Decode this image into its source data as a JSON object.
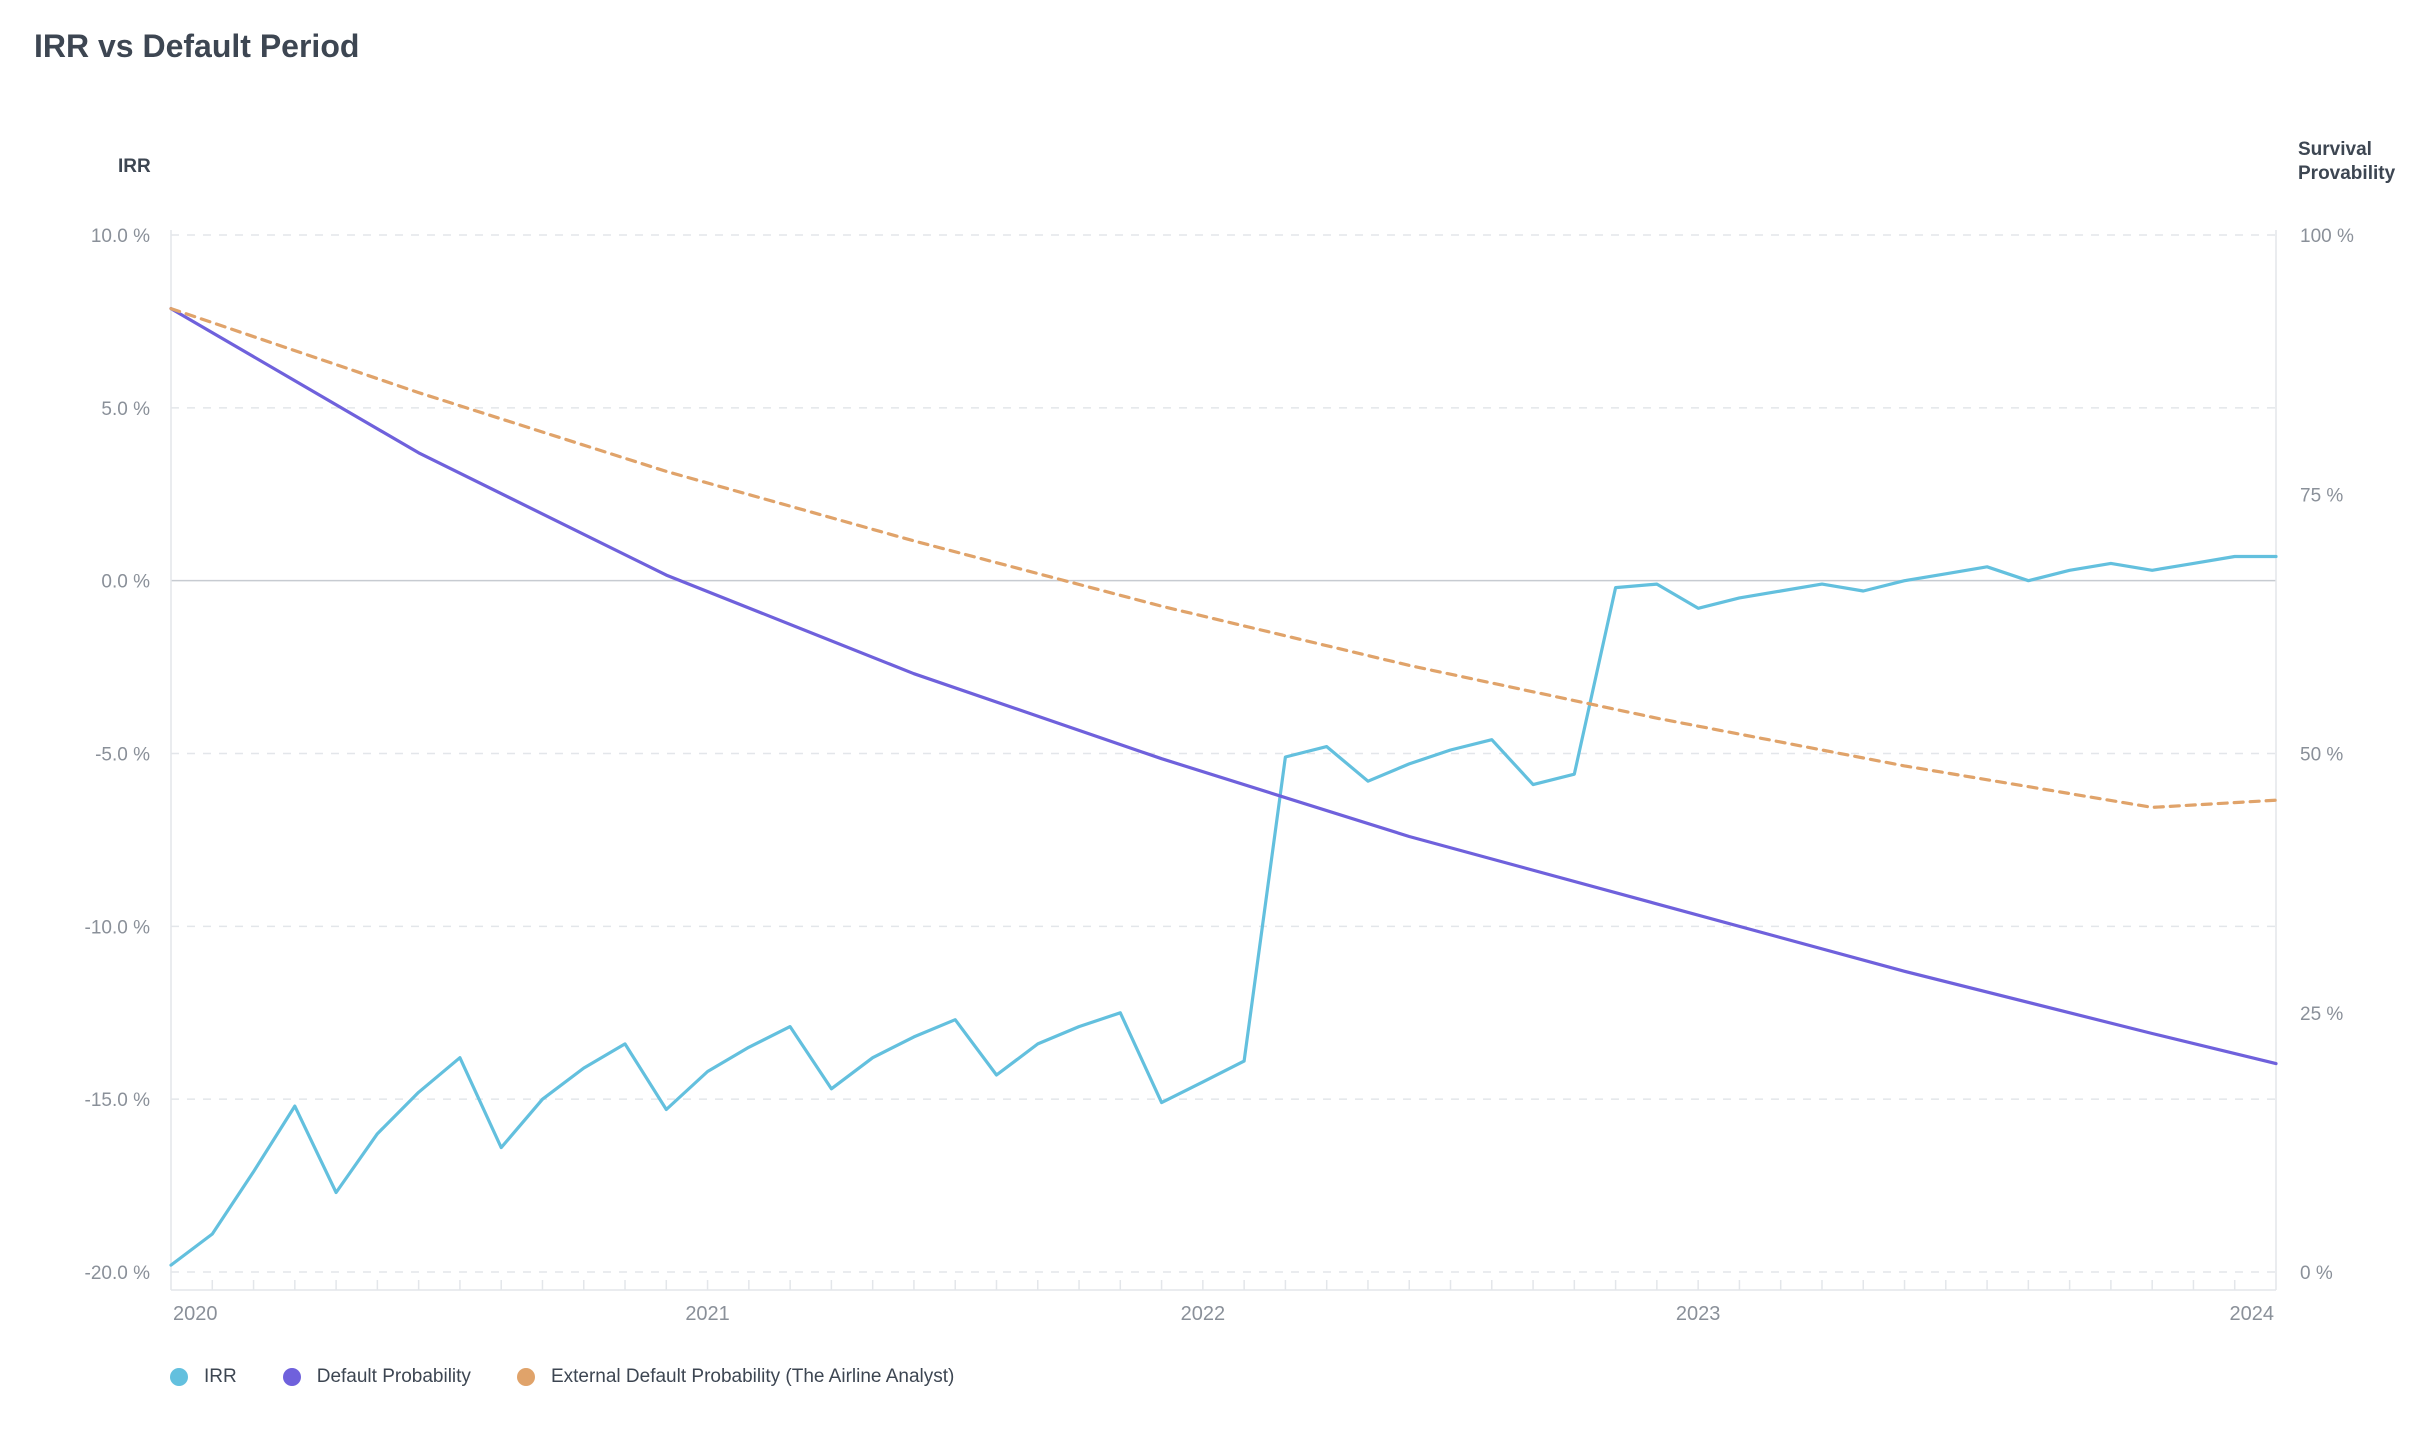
{
  "page_title": "IRR vs Default Period",
  "colors": {
    "irr": "#63c0de",
    "default_probability": "#6f61dc",
    "external_default_probability": "#e0a36a",
    "grid": "#e3e6ea",
    "zero_line": "#c7cbd1",
    "tick_text": "#8a9099"
  },
  "chart_data": {
    "type": "line",
    "title": "IRR vs Default Period",
    "y_left": {
      "label": "IRR",
      "range": [
        -20,
        10
      ],
      "ticks": [
        10,
        5,
        0,
        -5,
        -10,
        -15,
        -20
      ],
      "tick_labels": [
        "10.0 %",
        "5.0 %",
        "0.0 %",
        "-5.0 %",
        "-10.0 %",
        "-15.0 %",
        "-20.0 %"
      ]
    },
    "y_right": {
      "label": "Survival Provability",
      "range": [
        0,
        100
      ],
      "ticks": [
        100,
        75,
        50,
        25,
        0
      ],
      "tick_labels": [
        "100 %",
        "75 %",
        "50 %",
        "25 %",
        "0 %"
      ]
    },
    "x_axis": {
      "range": [
        "2019-12",
        "2024-03"
      ],
      "ticks": [
        "2020",
        "2021",
        "2022",
        "2023",
        "2024"
      ]
    },
    "grid": true,
    "legend_position": "bottom-left",
    "series": [
      {
        "name": "IRR",
        "axis": "left",
        "style": "solid",
        "x": [
          "2019-12",
          "2020-01",
          "2020-02",
          "2020-03",
          "2020-04",
          "2020-05",
          "2020-06",
          "2020-07",
          "2020-08",
          "2020-09",
          "2020-10",
          "2020-11",
          "2020-12",
          "2021-01",
          "2021-02",
          "2021-03",
          "2021-04",
          "2021-05",
          "2021-06",
          "2021-07",
          "2021-08",
          "2021-09",
          "2021-10",
          "2021-11",
          "2021-12",
          "2022-01",
          "2022-02",
          "2022-03",
          "2022-04",
          "2022-05",
          "2022-06",
          "2022-07",
          "2022-08",
          "2022-09",
          "2022-10",
          "2022-11",
          "2022-12",
          "2023-01",
          "2023-02",
          "2023-03",
          "2023-04",
          "2023-05",
          "2023-06",
          "2023-07",
          "2023-08",
          "2023-09",
          "2023-10",
          "2023-11",
          "2023-12",
          "2024-01",
          "2024-02",
          "2024-03"
        ],
        "values": [
          -19.8,
          -18.9,
          -17.1,
          -15.2,
          -17.7,
          -16.0,
          -14.8,
          -13.8,
          -16.4,
          -15.0,
          -14.1,
          -13.4,
          -15.3,
          -14.2,
          -13.5,
          -12.9,
          -14.7,
          -13.8,
          -13.2,
          -12.7,
          -14.3,
          -13.4,
          -12.9,
          -12.5,
          -15.1,
          -14.5,
          -13.9,
          -5.1,
          -4.8,
          -5.8,
          -5.3,
          -4.9,
          -4.6,
          -5.9,
          -5.6,
          -0.2,
          -0.1,
          -0.8,
          -0.5,
          -0.3,
          -0.1,
          -0.3,
          0.0,
          0.2,
          0.4,
          0.0,
          0.3,
          0.5,
          0.3,
          0.5,
          0.7,
          0.7
        ]
      },
      {
        "name": "Default Probability",
        "axis": "right",
        "style": "solid",
        "x": [
          "2019-12",
          "2020-06",
          "2020-12",
          "2021-06",
          "2021-12",
          "2022-06",
          "2022-12",
          "2023-06",
          "2023-12",
          "2024-03"
        ],
        "values": [
          92.9,
          79.0,
          67.2,
          57.7,
          49.5,
          42.0,
          35.5,
          29.0,
          23.0,
          20.1
        ]
      },
      {
        "name": "External Default Probability (The Airline Analyst)",
        "axis": "right",
        "style": "dashed",
        "x": [
          "2019-12",
          "2020-06",
          "2020-12",
          "2021-06",
          "2021-12",
          "2022-06",
          "2022-12",
          "2023-06",
          "2023-12",
          "2024-03"
        ],
        "values": [
          92.9,
          84.8,
          77.2,
          70.5,
          64.2,
          58.5,
          53.4,
          48.8,
          44.8,
          45.5
        ]
      }
    ]
  }
}
